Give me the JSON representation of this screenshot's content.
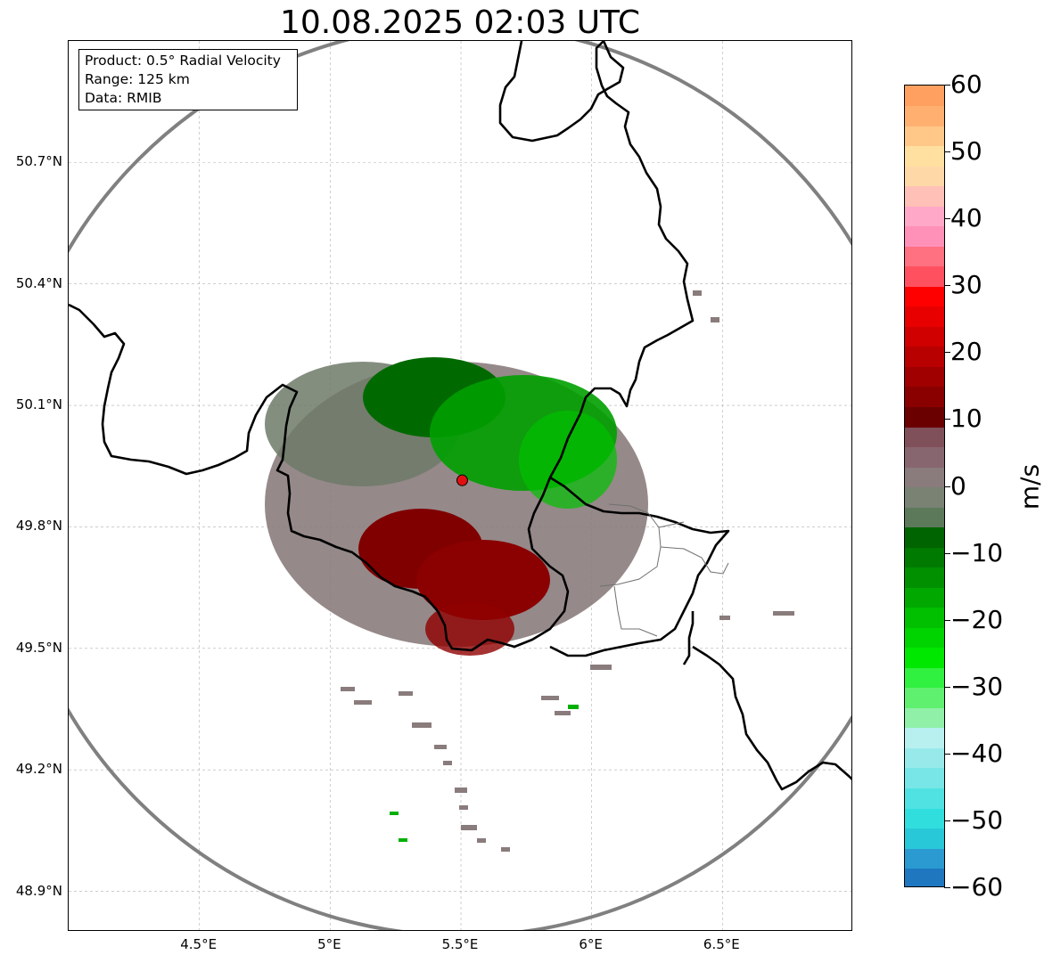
{
  "title": "10.08.2025 02:03 UTC",
  "info_box": {
    "product": "Product: 0.5° Radial Velocity",
    "range": "Range: 125 km",
    "data": "Data: RMIB"
  },
  "map": {
    "lon_range": [
      4.0,
      7.0
    ],
    "lat_range": [
      48.8,
      51.0
    ],
    "radar_site": {
      "lon": 5.505,
      "lat": 49.915
    },
    "range_ring_km": 125,
    "grid": true,
    "lat_ticks": [
      {
        "value": 50.7,
        "label": "50.7°N"
      },
      {
        "value": 50.4,
        "label": "50.4°N"
      },
      {
        "value": 50.1,
        "label": "50.1°N"
      },
      {
        "value": 49.8,
        "label": "49.8°N"
      },
      {
        "value": 49.5,
        "label": "49.5°N"
      },
      {
        "value": 49.2,
        "label": "49.2°N"
      },
      {
        "value": 48.9,
        "label": "48.9°N"
      }
    ],
    "lon_ticks": [
      {
        "value": 4.5,
        "label": "4.5°E"
      },
      {
        "value": 5.0,
        "label": "5°E"
      },
      {
        "value": 5.5,
        "label": "5.5°E"
      },
      {
        "value": 6.0,
        "label": "6°E"
      },
      {
        "value": 6.5,
        "label": "6.5°E"
      }
    ],
    "colors": {
      "border": "#000000",
      "ring": "#808080",
      "grid": "#b0b0b0",
      "site": "#e01010",
      "outbound": "#8b0000",
      "inbound": "#007a00",
      "near_zero": "#8a7a78"
    }
  },
  "colorbar": {
    "unit": "m/s",
    "min": -60,
    "max": 60,
    "ticks": [
      {
        "value": 60,
        "label": "60"
      },
      {
        "value": 50,
        "label": "50"
      },
      {
        "value": 40,
        "label": "40"
      },
      {
        "value": 30,
        "label": "30"
      },
      {
        "value": 20,
        "label": "20"
      },
      {
        "value": 10,
        "label": "10"
      },
      {
        "value": 0,
        "label": "0"
      },
      {
        "value": -10,
        "label": "−10"
      },
      {
        "value": -20,
        "label": "−20"
      },
      {
        "value": -30,
        "label": "−30"
      },
      {
        "value": -40,
        "label": "−40"
      },
      {
        "value": -50,
        "label": "−50"
      },
      {
        "value": -60,
        "label": "−60"
      }
    ],
    "stops": [
      "#1f77c0",
      "#2a9ad0",
      "#28c8d8",
      "#30dede",
      "#50e2e2",
      "#78e6e6",
      "#98eaea",
      "#b8f0f0",
      "#90f0a8",
      "#60f070",
      "#30f040",
      "#00e800",
      "#00d400",
      "#00c000",
      "#00a800",
      "#009000",
      "#007a00",
      "#006400",
      "#5c7a5a",
      "#7a8274",
      "#8a7c7c",
      "#886670",
      "#80505a",
      "#6a0000",
      "#8a0000",
      "#a00000",
      "#b80000",
      "#d00000",
      "#e80000",
      "#ff0000",
      "#ff5060",
      "#ff7080",
      "#ff90b8",
      "#ffa8c8",
      "#ffc0b8",
      "#ffd8a8",
      "#ffe0a0",
      "#ffc888",
      "#ffb070",
      "#ffa060"
    ]
  }
}
